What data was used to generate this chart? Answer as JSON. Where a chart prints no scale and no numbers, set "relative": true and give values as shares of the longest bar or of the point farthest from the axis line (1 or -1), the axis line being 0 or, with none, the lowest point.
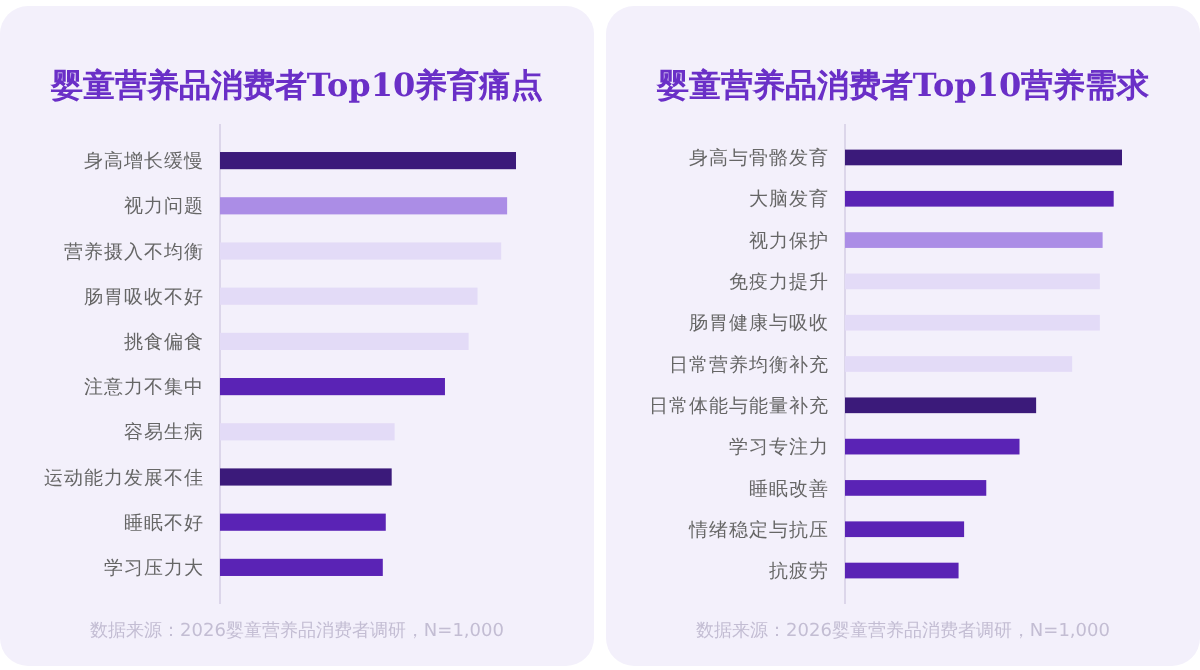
{
  "chart_data": [
    {
      "type": "bar",
      "orientation": "horizontal",
      "relative": true,
      "title": "婴童营养品消费者Top10养育痛点",
      "categories": [
        "身高增长缓慢",
        "视力问题",
        "营养摄入不均衡",
        "肠胃吸收不好",
        "挑食偏食",
        "注意力不集中",
        "容易生病",
        "运动能力发展不佳",
        "睡眠不好",
        "学习压力大"
      ],
      "values": [
        1,
        0.97,
        0.95,
        0.87,
        0.84,
        0.76,
        0.59,
        0.58,
        0.56,
        0.55
      ],
      "colors": [
        "#3b1a7a",
        "#ab8de6",
        "#e3dbf7",
        "#e3dbf7",
        "#e3dbf7",
        "#5a23b5",
        "#e3dbf7",
        "#3b1a7a",
        "#5a23b5",
        "#5a23b5"
      ],
      "annotations": [
        "数据来源：2026婴童营养品消费者调研，N=1,000"
      ]
    },
    {
      "type": "bar",
      "orientation": "horizontal",
      "relative": true,
      "title": "婴童营养品消费者Top10营养需求",
      "categories": [
        "身高与骨骼发育",
        "大脑发育",
        "视力保护",
        "免疫力提升",
        "肠胃健康与吸收",
        "日常营养均衡补充",
        "日常体能与能量补充",
        "学习专注力",
        "睡眠改善",
        "情绪稳定与抗压",
        "抗疲劳"
      ],
      "values": [
        1,
        0.97,
        0.93,
        0.92,
        0.92,
        0.82,
        0.69,
        0.63,
        0.51,
        0.43,
        0.41
      ],
      "colors": [
        "#3b1a7a",
        "#5a23b5",
        "#ab8de6",
        "#e3dbf7",
        "#e3dbf7",
        "#e3dbf7",
        "#3b1a7a",
        "#5a23b5",
        "#5a23b5",
        "#5a23b5",
        "#5a23b5"
      ],
      "annotations": [
        "数据来源：2026婴童营养品消费者调研，N=1,000"
      ]
    }
  ]
}
